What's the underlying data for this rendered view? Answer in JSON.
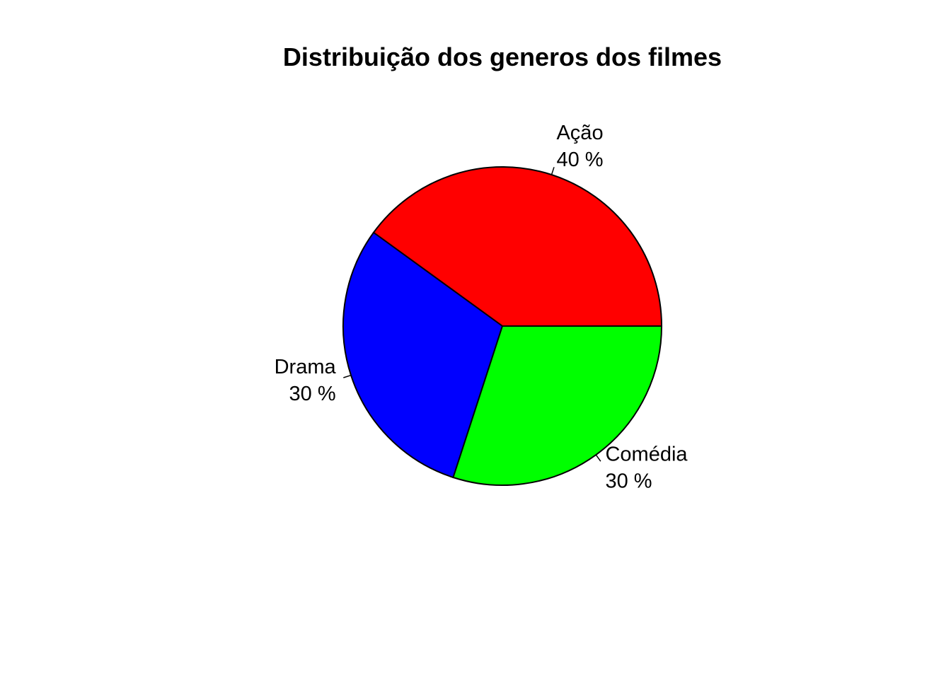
{
  "chart_data": {
    "type": "pie",
    "title": "Distribuição dos generos dos filmes",
    "slices": [
      {
        "label": "Ação",
        "value": 40,
        "pct_label": "40 %",
        "color": "#ff0000"
      },
      {
        "label": "Drama",
        "value": 30,
        "pct_label": "30 %",
        "color": "#0000ff"
      },
      {
        "label": "Comédia",
        "value": 30,
        "pct_label": "30 %",
        "color": "#00ff00"
      }
    ],
    "start_angle_deg": 0,
    "direction": "counterclockwise",
    "legend": "none"
  }
}
